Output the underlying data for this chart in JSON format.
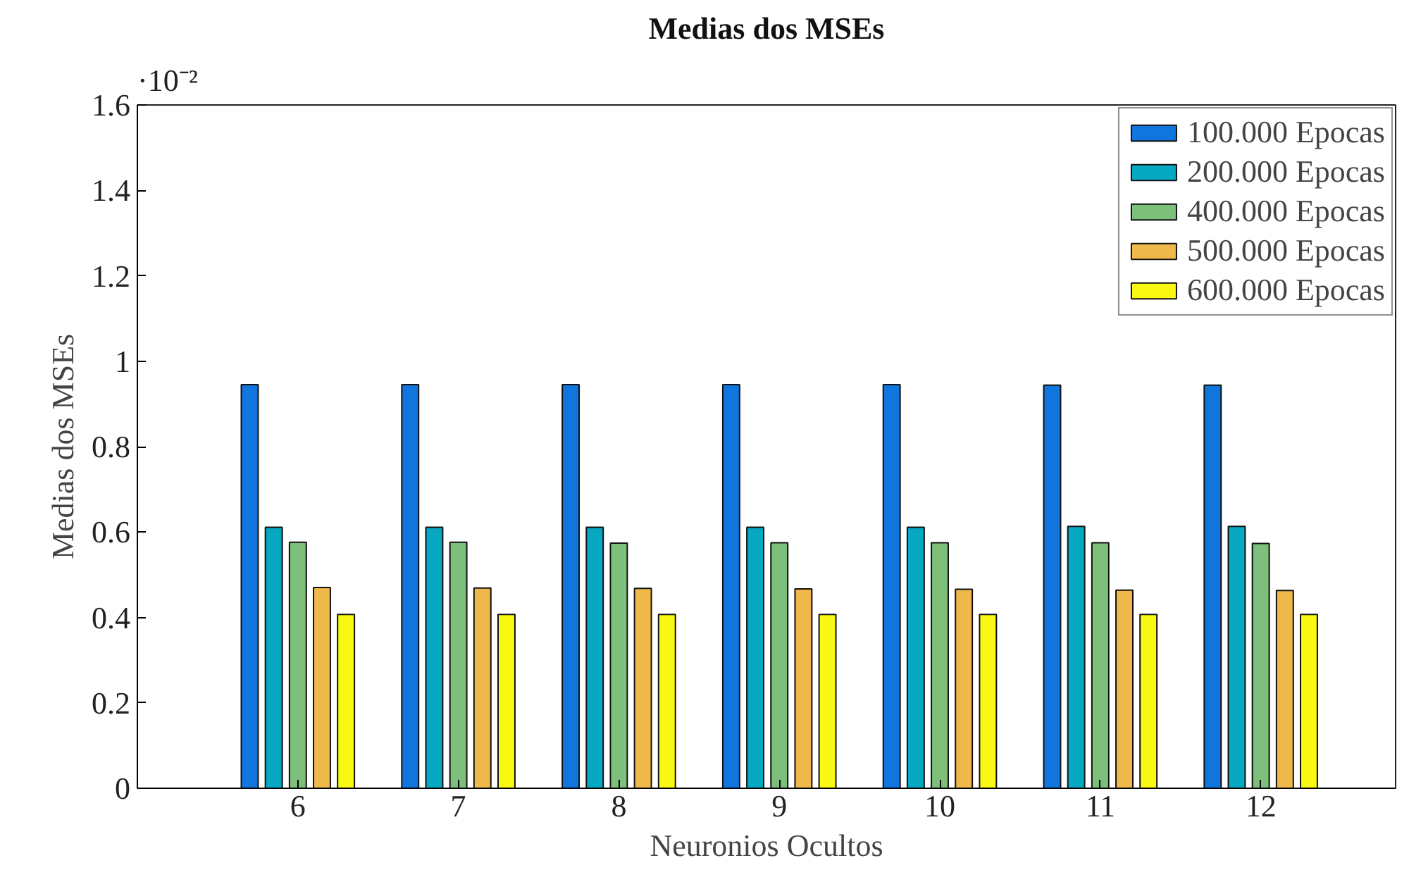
{
  "chart_data": {
    "type": "bar",
    "title": "Medias dos MSEs",
    "xlabel": "Neuronios Ocultos",
    "ylabel": "Medias dos MSEs",
    "categories": [
      "6",
      "7",
      "8",
      "9",
      "10",
      "11",
      "12"
    ],
    "series": [
      {
        "name": "100.000 Epocas",
        "color": "#1075dd",
        "values": [
          0.945,
          0.945,
          0.945,
          0.945,
          0.945,
          0.944,
          0.944
        ]
      },
      {
        "name": "200.000 Epocas",
        "color": "#07a8c2",
        "values": [
          0.611,
          0.611,
          0.611,
          0.611,
          0.611,
          0.613,
          0.613
        ]
      },
      {
        "name": "400.000 Epocas",
        "color": "#7dc07b",
        "values": [
          0.576,
          0.576,
          0.574,
          0.575,
          0.575,
          0.575,
          0.573
        ]
      },
      {
        "name": "500.000 Epocas",
        "color": "#efb84a",
        "values": [
          0.47,
          0.469,
          0.468,
          0.467,
          0.466,
          0.464,
          0.463
        ]
      },
      {
        "name": "600.000 Epocas",
        "color": "#f8f812",
        "values": [
          0.407,
          0.407,
          0.407,
          0.407,
          0.407,
          0.407,
          0.407
        ]
      }
    ],
    "ylim": [
      0,
      1.6
    ],
    "yticks": [
      0,
      0.2,
      0.4,
      0.6,
      0.8,
      1,
      1.2,
      1.4,
      1.6
    ],
    "annotations": [
      "·10⁻²"
    ],
    "grid": false,
    "legend": "top right"
  }
}
